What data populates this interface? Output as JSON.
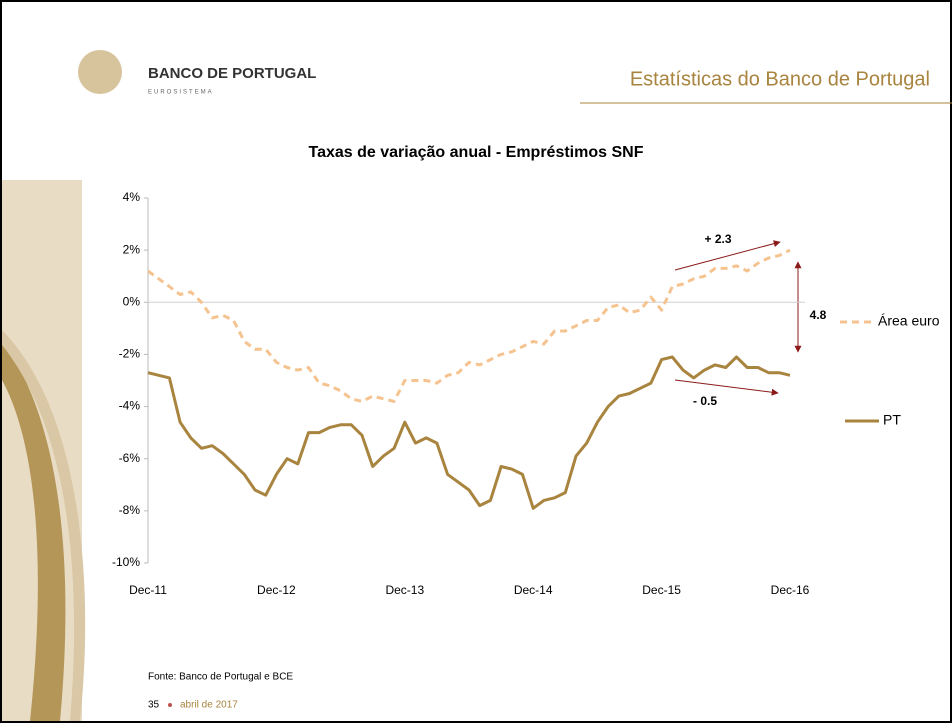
{
  "header": {
    "brand": "BANCO DE PORTUGAL",
    "brand_sub": "EUROSISTEMA",
    "title": "Estatísticas do Banco de Portugal"
  },
  "chart_data": {
    "type": "line",
    "title": "Taxas de variação anual - Empréstimos SNF",
    "categories": [
      "Dec-11",
      null,
      null,
      null,
      null,
      null,
      null,
      null,
      null,
      null,
      null,
      null,
      "Dec-12",
      null,
      null,
      null,
      null,
      null,
      null,
      null,
      null,
      null,
      null,
      null,
      "Dec-13",
      null,
      null,
      null,
      null,
      null,
      null,
      null,
      null,
      null,
      null,
      null,
      "Dec-14",
      null,
      null,
      null,
      null,
      null,
      null,
      null,
      null,
      null,
      null,
      null,
      "Dec-15",
      null,
      null,
      null,
      null,
      null,
      null,
      null,
      null,
      null,
      null,
      null,
      "Dec-16"
    ],
    "series": [
      {
        "name": "Área euro",
        "color": "#f5c38f",
        "dash": true,
        "values": [
          1.2,
          0.9,
          0.6,
          0.3,
          0.4,
          0.0,
          -0.6,
          -0.5,
          -0.7,
          -1.5,
          -1.8,
          -1.8,
          -2.3,
          -2.5,
          -2.6,
          -2.5,
          -3.1,
          -3.2,
          -3.4,
          -3.7,
          -3.8,
          -3.6,
          -3.7,
          -3.8,
          -3.0,
          -3.0,
          -3.0,
          -3.1,
          -2.8,
          -2.7,
          -2.3,
          -2.4,
          -2.2,
          -2.0,
          -1.9,
          -1.7,
          -1.5,
          -1.6,
          -1.1,
          -1.1,
          -0.9,
          -0.7,
          -0.7,
          -0.2,
          -0.1,
          -0.4,
          -0.3,
          0.2,
          -0.3,
          0.6,
          0.7,
          0.9,
          1.0,
          1.3,
          1.3,
          1.4,
          1.2,
          1.5,
          1.7,
          1.8,
          2.0
        ]
      },
      {
        "name": "PT",
        "color": "#a8843f",
        "dash": false,
        "values": [
          -2.7,
          -2.8,
          -2.9,
          -4.6,
          -5.2,
          -5.6,
          -5.5,
          -5.8,
          -6.2,
          -6.6,
          -7.2,
          -7.4,
          -6.6,
          -6.0,
          -6.2,
          -5.0,
          -5.0,
          -4.8,
          -4.7,
          -4.7,
          -5.1,
          -6.3,
          -5.9,
          -5.6,
          -4.6,
          -5.4,
          -5.2,
          -5.4,
          -6.6,
          -6.9,
          -7.2,
          -7.8,
          -7.6,
          -6.3,
          -6.4,
          -6.6,
          -7.9,
          -7.6,
          -7.5,
          -7.3,
          -5.9,
          -5.4,
          -4.6,
          -4.0,
          -3.6,
          -3.5,
          -3.3,
          -3.1,
          -2.2,
          -2.1,
          -2.6,
          -2.9,
          -2.6,
          -2.4,
          -2.5,
          -2.1,
          -2.5,
          -2.5,
          -2.7,
          -2.7,
          -2.8
        ]
      }
    ],
    "ylim": [
      -10,
      4
    ],
    "yticks": [
      {
        "value": -10,
        "label": "-10%"
      },
      {
        "value": -8,
        "label": "-8%"
      },
      {
        "value": -6,
        "label": "-6%"
      },
      {
        "value": -4,
        "label": "-4%"
      },
      {
        "value": -2,
        "label": "-2%"
      },
      {
        "value": 0,
        "label": "0%"
      },
      {
        "value": 2,
        "label": "2%"
      },
      {
        "value": 4,
        "label": "4%"
      }
    ],
    "annotations": [
      "+ 2.3",
      "- 0.5",
      "4.8"
    ]
  },
  "footer": {
    "source": "Fonte: Banco de Portugal e BCE",
    "page": "35",
    "date": "abril de 2017"
  }
}
